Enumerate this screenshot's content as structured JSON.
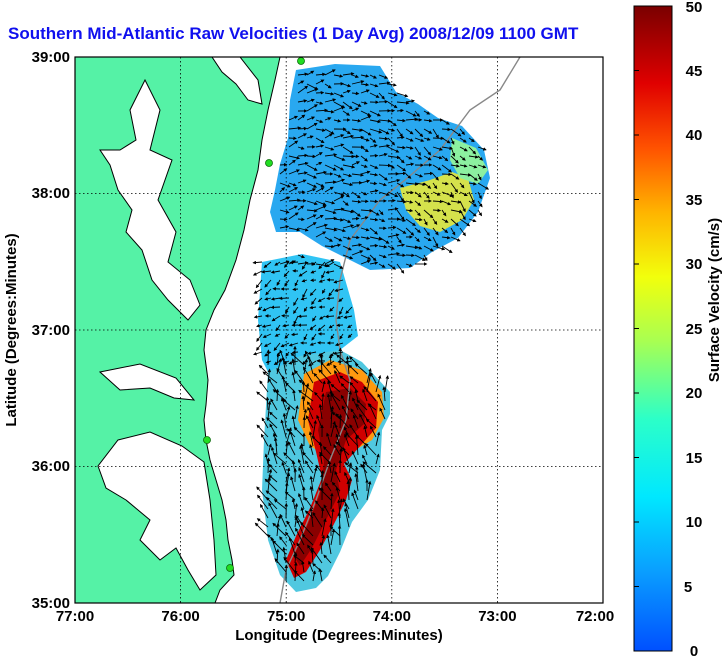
{
  "title": "Southern Mid-Atlantic Raw Velocities (1 Day Avg) 2008/12/09 1100 GMT",
  "map": {
    "xlabel": "Longitude (Degrees:Minutes)",
    "ylabel": "Latitude (Degrees:Minutes)",
    "lon_ticks": [
      "77:00",
      "76:00",
      "75:00",
      "74:00",
      "73:00",
      "72:00"
    ],
    "lat_ticks": [
      "39:00",
      "38:00",
      "37:00",
      "36:00",
      "35:00"
    ],
    "lon_range": [
      -77,
      -72
    ],
    "lat_range": [
      35,
      39
    ],
    "grid": true,
    "land_color": "#55f2a6",
    "water_color": "#ffffff",
    "site_color": "#22dd22"
  },
  "colorbar": {
    "label": "Surface Velocity (cm/s)",
    "ticks": [
      "0",
      "5",
      "10",
      "15",
      "20",
      "25",
      "30",
      "35",
      "40",
      "45",
      "50"
    ],
    "range": [
      0,
      50
    ],
    "colormap": "jet"
  }
}
